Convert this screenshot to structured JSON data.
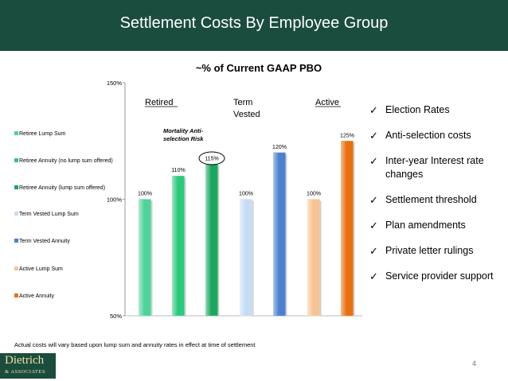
{
  "header": {
    "title": "Settlement Costs By Employee Group"
  },
  "chart_data": {
    "type": "bar",
    "title": "~% of Current GAAP PBO",
    "categories": [
      "Retiree Lump Sum",
      "Retiree Annuity (no lump sum offered)",
      "Retiree Annuity (lump sum offered)",
      "Term Vested Lump Sum",
      "Term Vested Annuity",
      "Active Lump Sum",
      "Active Annuity"
    ],
    "values": [
      100,
      110,
      115,
      100,
      120,
      100,
      125
    ],
    "value_labels": [
      "100%",
      "110%",
      "115%",
      "100%",
      "120%",
      "100%",
      "125%"
    ],
    "colors": [
      "#4fd39a",
      "#2bc97c",
      "#1aa85f",
      "#c6dcf5",
      "#4a80cf",
      "#f7c393",
      "#e8700f"
    ],
    "ylim": [
      50,
      150
    ],
    "yticks": [
      50,
      100,
      150
    ],
    "ytick_labels": [
      "50%",
      "100%",
      "150%"
    ],
    "group_labels": [
      "Retired",
      "Term Vested",
      "Active"
    ],
    "annotation": "Mortality Anti-selection Risk",
    "legend_position": "left",
    "grid": false
  },
  "bullets": [
    "Election Rates",
    "Anti-selection costs",
    "Inter-year Interest rate changes",
    "Settlement threshold",
    "Plan amendments",
    "Private letter rulings",
    "Service provider support"
  ],
  "footnote": "Actual costs will vary based upon lump sum and annuity rates in effect at time of settlement",
  "logo": {
    "line1": "Dietrich",
    "line2": "& ASSOCIATES"
  },
  "page_number": "4"
}
